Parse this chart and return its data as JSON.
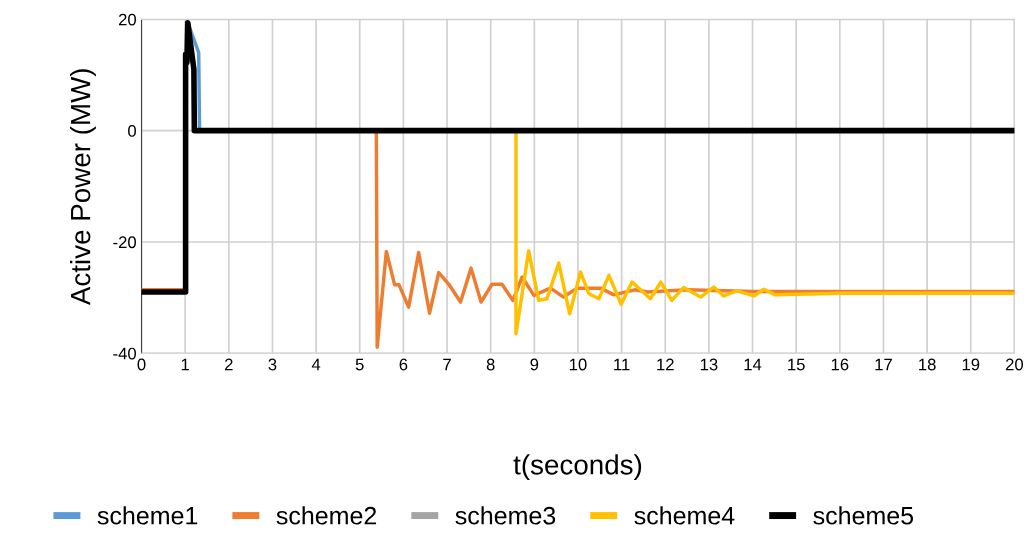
{
  "chart_data": {
    "type": "line",
    "xlabel": "t(seconds)",
    "ylabel": "Active Power (MW)",
    "xlim": [
      0,
      20
    ],
    "ylim": [
      -40,
      20
    ],
    "xticks": [
      0,
      1,
      2,
      3,
      4,
      5,
      6,
      7,
      8,
      9,
      10,
      11,
      12,
      13,
      14,
      15,
      16,
      17,
      18,
      19,
      20
    ],
    "yticks": [
      -40,
      -20,
      0,
      20
    ],
    "grid": true,
    "legend": "bottom",
    "marker": "none",
    "line_style": "solid",
    "series": [
      {
        "name": "scheme1",
        "color": "#5b9bd5",
        "x": [
          1.06,
          1.31,
          1.33
        ],
        "values": [
          19.4,
          14,
          0
        ]
      },
      {
        "name": "scheme2",
        "color": "#ed7d31",
        "x": [
          0,
          1.01,
          null,
          5.38,
          5.4,
          5.61,
          5.8,
          5.9,
          6.12,
          6.35,
          6.6,
          6.81,
          7.04,
          7.31,
          7.55,
          7.78,
          8.03,
          8.26,
          8.51,
          8.72,
          8.99,
          9.37,
          9.67,
          9.98,
          10.52,
          10.82,
          11.3,
          11.6,
          12.5,
          14,
          20
        ],
        "values": [
          -28.6,
          -28.6,
          null,
          0,
          -38.9,
          -21.7,
          -27.7,
          -27.7,
          -31.7,
          -21.9,
          -32.8,
          -25.5,
          -27.6,
          -30.8,
          -24.7,
          -30.8,
          -27.6,
          -27.6,
          -30.5,
          -26.3,
          -29.6,
          -28.3,
          -29.9,
          -28.3,
          -28.3,
          -29.5,
          -28.6,
          -29,
          -28.6,
          -28.9,
          -28.9
        ]
      },
      {
        "name": "scheme3",
        "color": "#a5a5a5"
      },
      {
        "name": "scheme4",
        "color": "#ffc000",
        "x": [
          8.58,
          8.58,
          8.87,
          9.1,
          9.29,
          9.56,
          9.81,
          10.06,
          10.25,
          10.48,
          10.71,
          10.99,
          11.24,
          11.66,
          11.9,
          12.15,
          12.42,
          12.81,
          13.11,
          13.34,
          13.64,
          14.03,
          14.26,
          14.52,
          16,
          20
        ],
        "values": [
          0,
          -36.5,
          -21.6,
          -30.5,
          -30.2,
          -23.8,
          -32.9,
          -25.4,
          -29.3,
          -30.2,
          -26,
          -31.2,
          -27.2,
          -30.2,
          -27.2,
          -30.5,
          -28.2,
          -29.9,
          -28.1,
          -29.7,
          -28.8,
          -29.7,
          -28.5,
          -29.5,
          -29.2,
          -29.2
        ]
      },
      {
        "name": "scheme5",
        "color": "#000000",
        "x": [
          0,
          1.01,
          1.01,
          1.04,
          1.06,
          1.2,
          1.21,
          20
        ],
        "values": [
          -29,
          -29,
          13.7,
          12.2,
          19.4,
          11,
          0,
          0
        ]
      }
    ]
  }
}
